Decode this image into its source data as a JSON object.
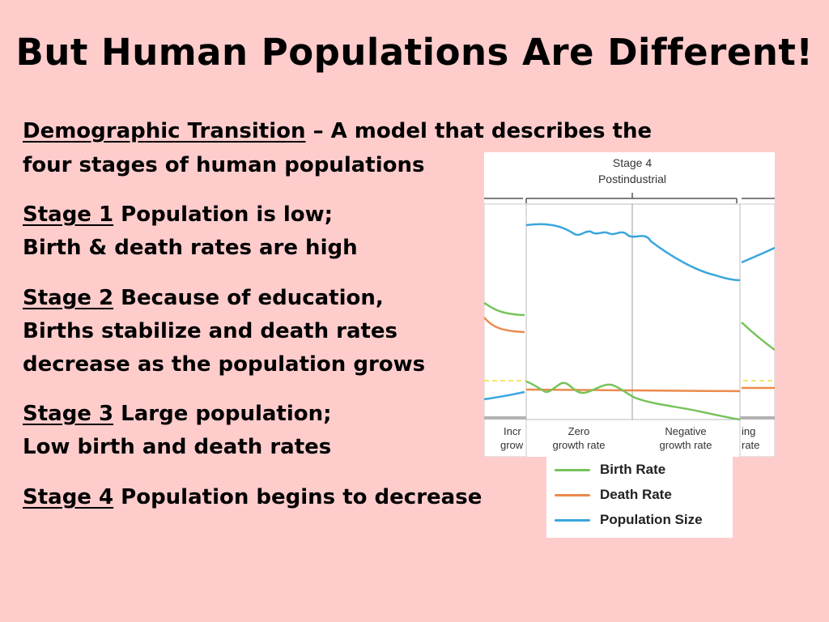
{
  "slide": {
    "title": "But Human Populations Are Different!",
    "definition": {
      "term": "Demographic Transition",
      "rest_line1": " – A model that describes the",
      "line2": "four stages of human populations"
    },
    "stages": [
      {
        "label": "Stage 1",
        "text1": " Population is low;",
        "text2": "Birth & death rates are high"
      },
      {
        "label": "Stage 2",
        "text1": " Because of education,",
        "text2": "Births stabilize and death rates",
        "text3": "decrease as the population grows"
      },
      {
        "label": "Stage 3",
        "text1": " Large population;",
        "text2": "Low birth and death rates"
      },
      {
        "label": "Stage 4",
        "text1": " Population begins to decrease"
      }
    ]
  },
  "diagram": {
    "stage_header": {
      "line1": "Stage 4",
      "line2": "Postindustrial"
    },
    "bottom_labels": {
      "left_partial_1": "Incr",
      "left_partial_2": "grow",
      "zero_1": "Zero",
      "zero_2": "growth rate",
      "neg_1": "Negative",
      "neg_2": "growth rate",
      "right_partial_1": "ing",
      "right_partial_2": "rate"
    },
    "legend": [
      {
        "name": "Birth Rate",
        "color": "#77c35a"
      },
      {
        "name": "Death Rate",
        "color": "#ec8a4d"
      },
      {
        "name": "Population Size",
        "color": "#3aa6dd"
      }
    ],
    "colors": {
      "birth": "#77c35a",
      "death": "#ec8a4d",
      "population": "#3aa6dd",
      "dashed": "#f0dc3c"
    }
  }
}
